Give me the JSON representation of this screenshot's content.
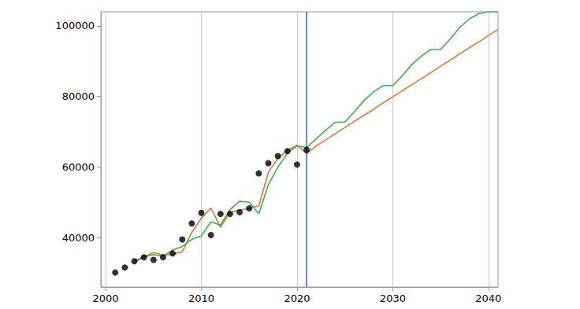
{
  "chart_data": {
    "type": "line",
    "x": [
      2001,
      2002,
      2003,
      2004,
      2005,
      2006,
      2007,
      2008,
      2009,
      2010,
      2011,
      2012,
      2013,
      2014,
      2015,
      2016,
      2017,
      2018,
      2019,
      2020,
      2021,
      2022,
      2023,
      2024,
      2025,
      2026,
      2027,
      2028,
      2029,
      2030,
      2031,
      2032,
      2033,
      2034,
      2035,
      2036,
      2037,
      2038,
      2039,
      2040,
      2041
    ],
    "series": [
      {
        "type": "line",
        "color": "#e8772e",
        "values": [
          null,
          null,
          33500,
          34500,
          35800,
          35000,
          35300,
          36000,
          41500,
          45500,
          48400,
          42900,
          47200,
          47800,
          48300,
          49000,
          58500,
          62500,
          64800,
          66200,
          63800,
          66000,
          67700,
          69500,
          71200,
          73000,
          74700,
          76400,
          78200,
          79900,
          81600,
          83400,
          85100,
          86800,
          88600,
          90300,
          92100,
          93800,
          95500,
          97300,
          99000
        ]
      },
      {
        "type": "line",
        "color": "#3cb44b",
        "values": [
          null,
          null,
          33000,
          34500,
          35200,
          34700,
          36500,
          37500,
          39500,
          40500,
          44500,
          43500,
          48000,
          50300,
          50000,
          46800,
          55000,
          60000,
          64000,
          66000,
          65500,
          68000,
          70500,
          72700,
          72800,
          75700,
          78900,
          81300,
          83100,
          83100,
          85900,
          89100,
          91500,
          93300,
          93300,
          96300,
          99600,
          102000,
          103500,
          104000,
          104000
        ]
      },
      {
        "type": "scatter",
        "color": "#000000",
        "marker": "circle",
        "values": [
          30100,
          31500,
          33300,
          34400,
          33700,
          34400,
          35500,
          39500,
          44000,
          47000,
          40700,
          46700,
          46700,
          47200,
          48300,
          58200,
          61100,
          63100,
          64500,
          60700,
          64900,
          null,
          null,
          null,
          null,
          null,
          null,
          null,
          null,
          null,
          null,
          null,
          null,
          null,
          null,
          null,
          null,
          null,
          null,
          null,
          null
        ]
      }
    ],
    "vline": {
      "x": 2021,
      "color": "#3a5fcd"
    },
    "xlim": [
      1999.5,
      2041
    ],
    "xticks": [
      2000,
      2010,
      2020,
      2030,
      2040
    ],
    "ylim": [
      26000,
      104000
    ],
    "yticks": [
      40000,
      60000,
      80000,
      100000
    ],
    "grid": "x"
  }
}
